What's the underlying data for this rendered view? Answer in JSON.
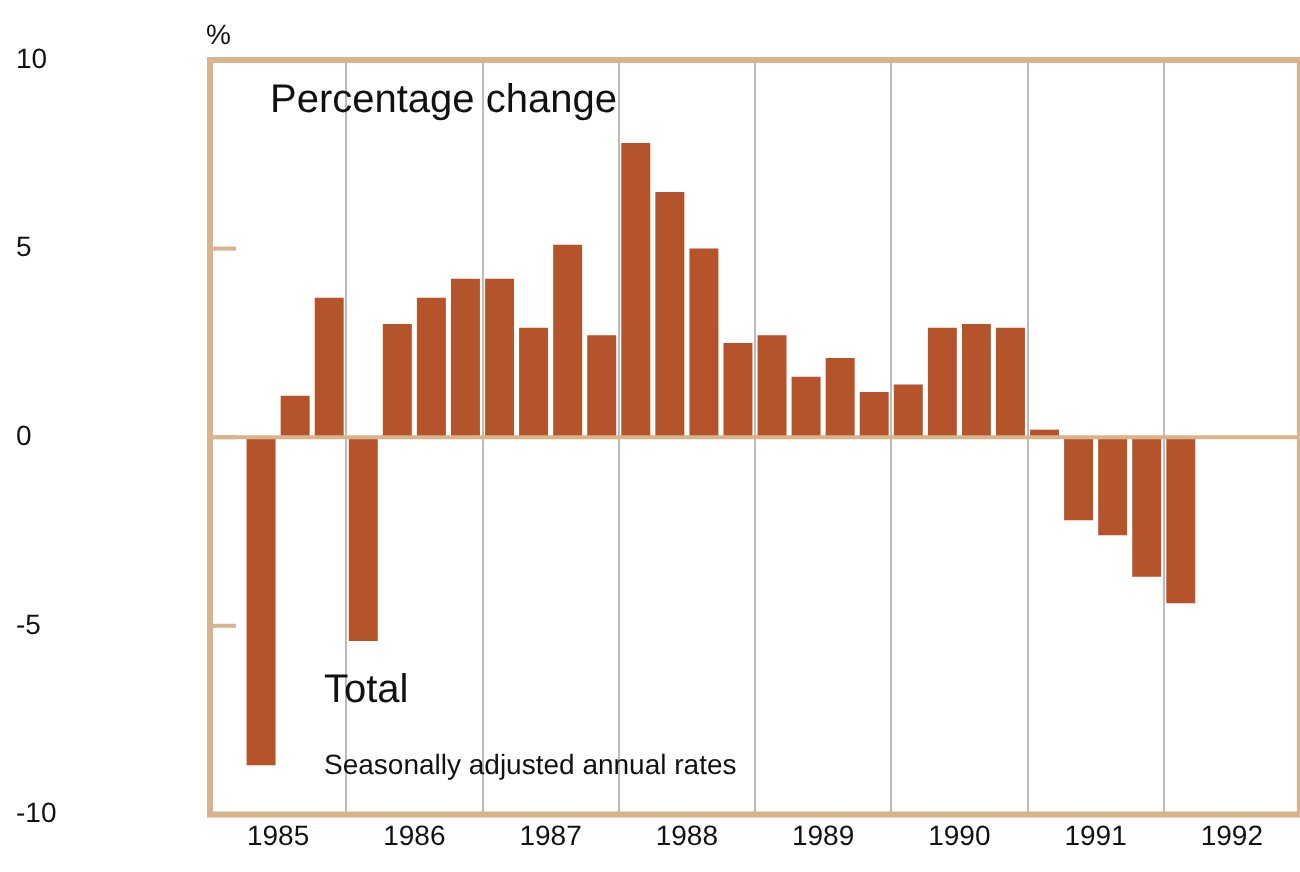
{
  "chart_data": {
    "type": "bar",
    "title": "Percentage change",
    "ylabel": "%",
    "annotations": [
      "Total",
      "Seasonally adjusted annual rates"
    ],
    "x": [
      1985.375,
      1985.625,
      1985.875,
      1986.125,
      1986.375,
      1986.625,
      1986.875,
      1987.125,
      1987.375,
      1987.625,
      1987.875,
      1988.125,
      1988.375,
      1988.625,
      1988.875,
      1989.125,
      1989.375,
      1989.625,
      1989.875,
      1990.125,
      1990.375,
      1990.625,
      1990.875,
      1991.125,
      1991.375,
      1991.625,
      1991.875,
      1992.125
    ],
    "values": [
      -8.7,
      1.1,
      3.7,
      -5.4,
      3.0,
      3.7,
      4.2,
      4.2,
      2.9,
      5.1,
      2.7,
      7.8,
      6.5,
      5.0,
      2.5,
      2.7,
      1.6,
      2.1,
      1.2,
      1.4,
      2.9,
      3.0,
      2.9,
      0.2,
      -2.2,
      -2.6,
      -3.7,
      -4.4
    ],
    "color": "#b5532b",
    "xlim": [
      1985,
      1993
    ],
    "xticks": [
      {
        "value": 1985.5,
        "label": "1985"
      },
      {
        "value": 1986,
        "label": null
      },
      {
        "value": 1986.5,
        "label": "1986"
      },
      {
        "value": 1987,
        "label": null
      },
      {
        "value": 1987.5,
        "label": "1987"
      },
      {
        "value": 1988,
        "label": null
      },
      {
        "value": 1988.5,
        "label": "1988"
      },
      {
        "value": 1989,
        "label": null
      },
      {
        "value": 1989.5,
        "label": "1989"
      },
      {
        "value": 1990,
        "label": null
      },
      {
        "value": 1990.5,
        "label": "1990"
      },
      {
        "value": 1991,
        "label": null
      },
      {
        "value": 1991.5,
        "label": "1991"
      },
      {
        "value": 1992,
        "label": null
      },
      {
        "value": 1992.5,
        "label": "1992"
      }
    ],
    "ylim": [
      -10,
      10
    ],
    "yticks": [
      -10,
      -5,
      0,
      5,
      10
    ],
    "ref_lines": [
      {
        "axis": "y",
        "value": 0,
        "color": "#d9b38c"
      }
    ],
    "grid": "x",
    "legend": false
  }
}
